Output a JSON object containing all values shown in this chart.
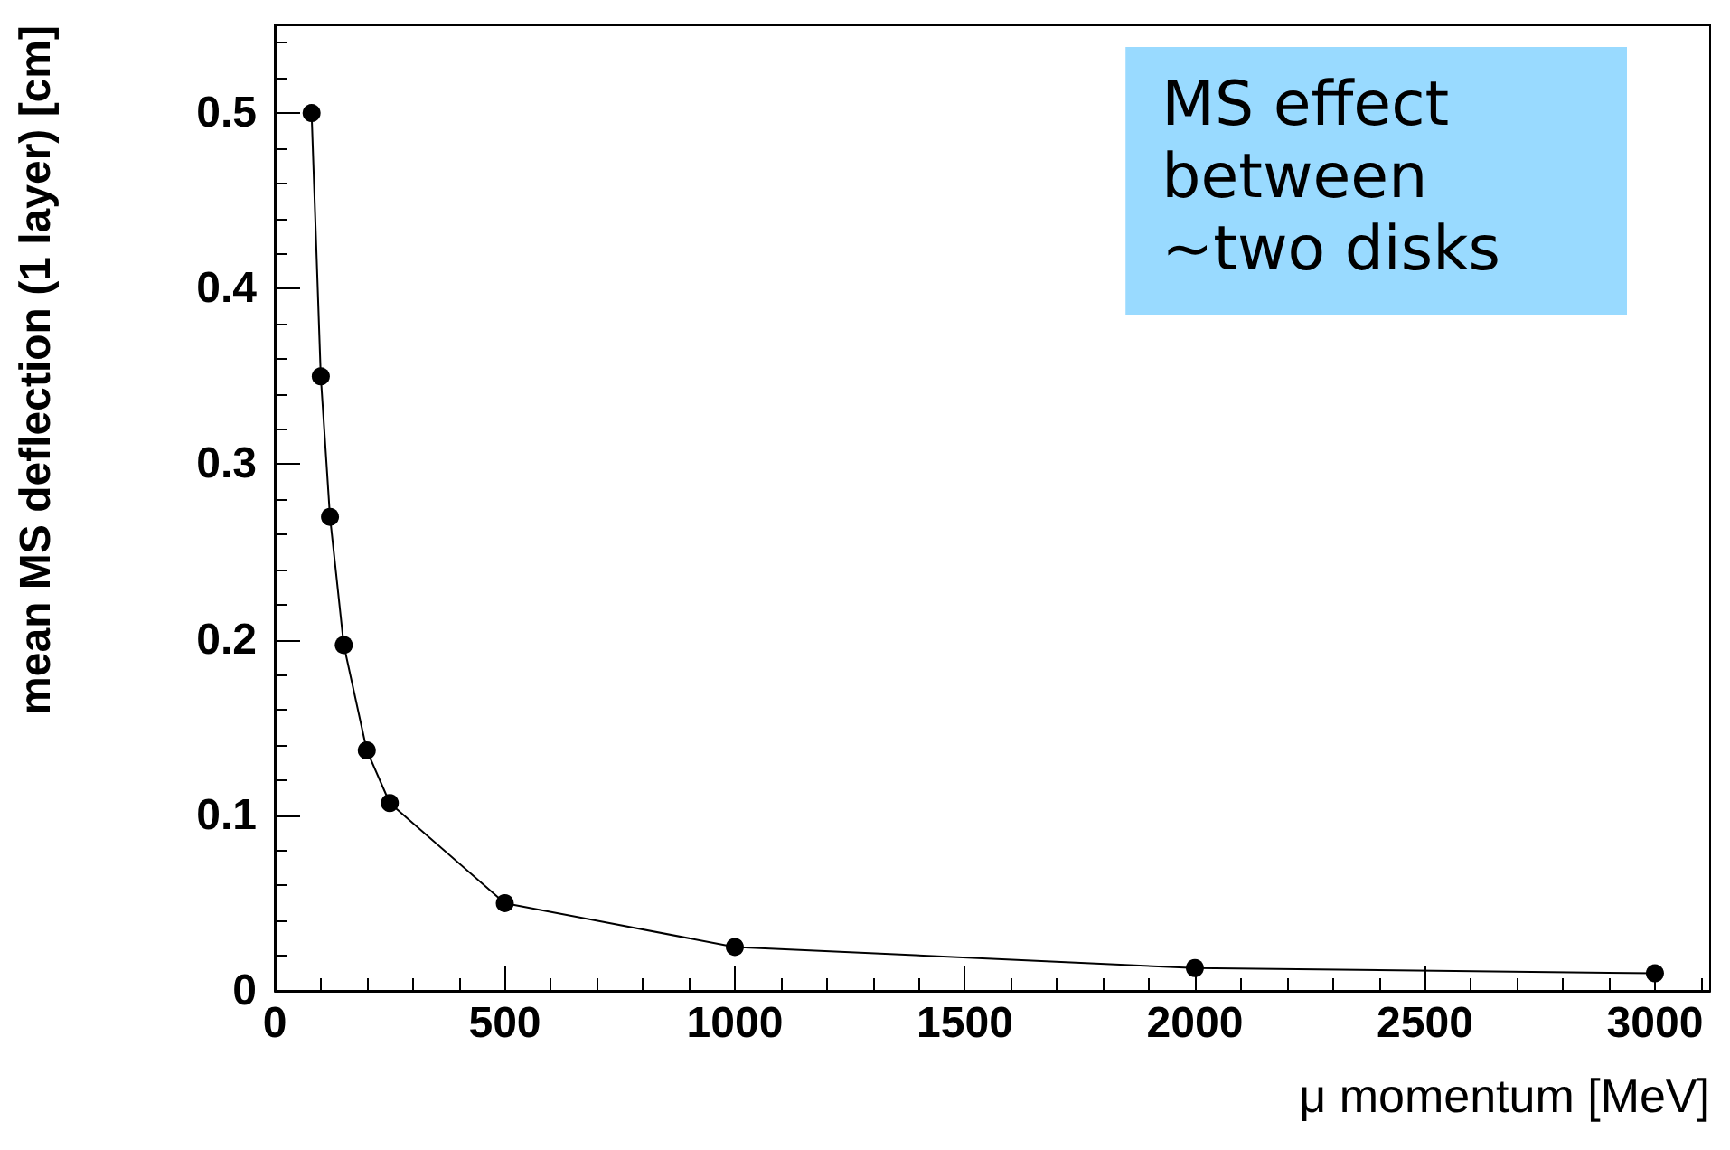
{
  "chart_data": {
    "type": "line",
    "xlabel": "μ momentum [MeV]",
    "ylabel": "mean MS deflection (1 layer) [cm]",
    "x": [
      80,
      100,
      120,
      150,
      200,
      250,
      500,
      1000,
      2000,
      3000
    ],
    "values": [
      0.5,
      0.35,
      0.27,
      0.197,
      0.137,
      0.107,
      0.05,
      0.025,
      0.013,
      0.01
    ],
    "color": "#000000",
    "marker": "circle",
    "line_style": "solid",
    "grid": false,
    "xlim": [
      0,
      3120
    ],
    "xticks": [
      0,
      500,
      1000,
      1500,
      2000,
      2500,
      3000
    ],
    "ylim": [
      0,
      0.55
    ],
    "yticks": [
      0,
      0.1,
      0.2,
      0.3,
      0.4,
      0.5
    ],
    "annotations": [
      "MS effect\nbetween\n~two disks"
    ]
  }
}
